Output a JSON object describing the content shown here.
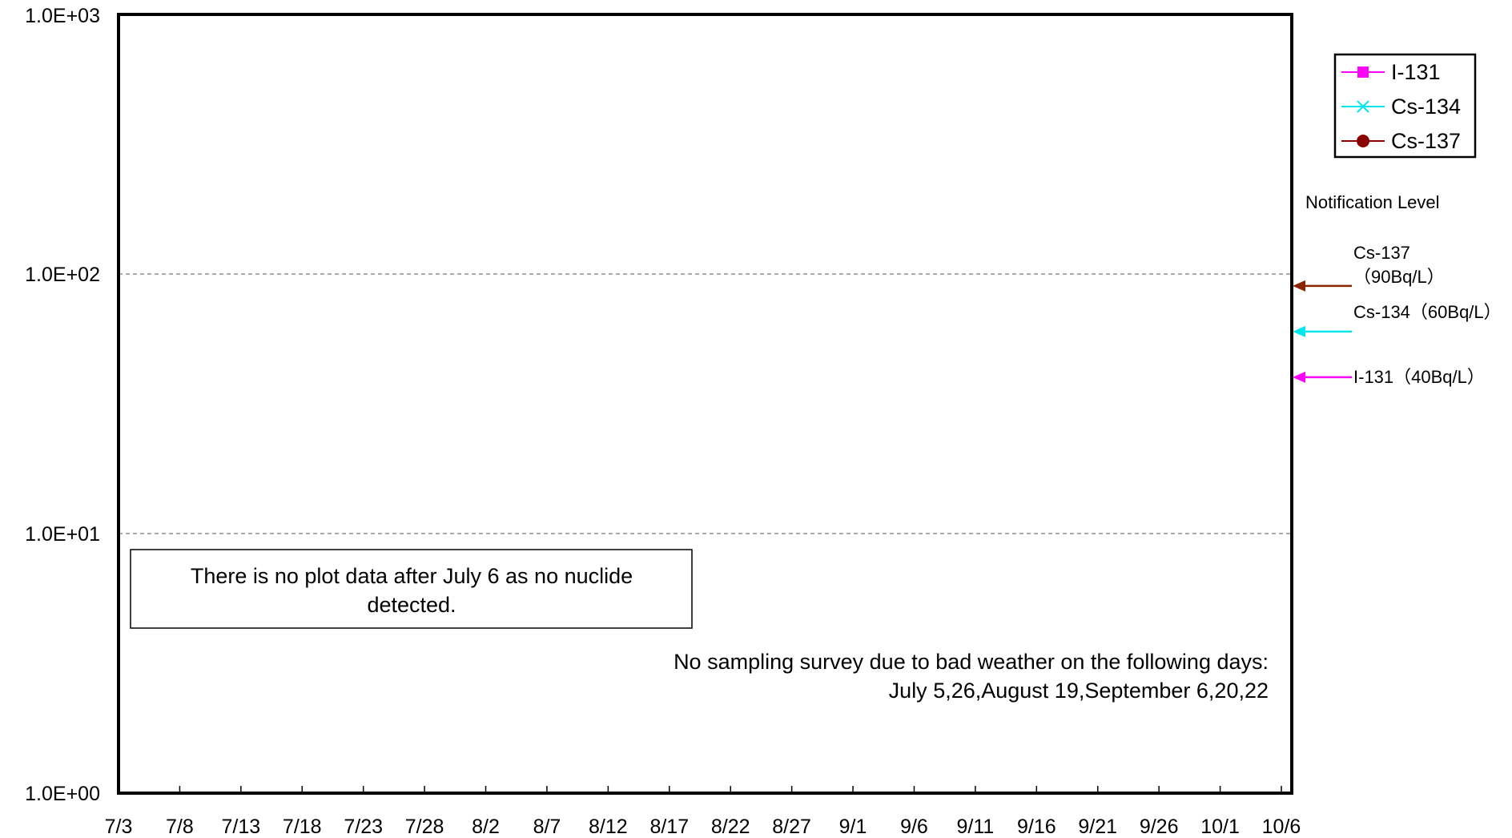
{
  "chart_data": {
    "type": "line",
    "title": "",
    "xlabel": "",
    "ylabel": "",
    "y_scale": "log",
    "ylim": [
      1,
      1000
    ],
    "y_ticks": [
      {
        "value": 1,
        "label": "1.0E+00"
      },
      {
        "value": 10,
        "label": "1.0E+01"
      },
      {
        "value": 100,
        "label": "1.0E+02"
      },
      {
        "value": 1000,
        "label": "1.0E+03"
      }
    ],
    "x_ticks": [
      "7/3",
      "7/8",
      "7/13",
      "7/18",
      "7/23",
      "7/28",
      "8/2",
      "8/7",
      "8/12",
      "8/17",
      "8/22",
      "8/27",
      "9/1",
      "9/6",
      "9/11",
      "9/16",
      "9/21",
      "9/26",
      "10/1",
      "10/6"
    ],
    "grid": "dashed horizontal at 1.0E+01 and 1.0E+02",
    "legend_position": "top-right",
    "series": [
      {
        "name": "I-131",
        "color": "#ff00ff",
        "marker": "square",
        "values": []
      },
      {
        "name": "Cs-134",
        "color": "#00e5ee",
        "marker": "x",
        "values": []
      },
      {
        "name": "Cs-137",
        "color": "#8b0000",
        "marker": "circle",
        "values": []
      }
    ],
    "notification_level": {
      "heading": "Notification Level",
      "levels": [
        {
          "nuclide": "Cs-137",
          "value": 90,
          "label_line1": "Cs-137",
          "label_line2": "（90Bq/L）",
          "color": "#8b2500"
        },
        {
          "nuclide": "Cs-134",
          "value": 60,
          "label_line1": "Cs-134（60Bq/L）",
          "label_line2": "",
          "color": "#00e5ee"
        },
        {
          "nuclide": "I-131",
          "value": 40,
          "label_line1": "I-131（40Bq/L）",
          "label_line2": "",
          "color": "#ff00ff"
        }
      ]
    },
    "annotations": {
      "no_data_line1": "There is no plot data after July 6 as no nuclide",
      "no_data_line2": "detected.",
      "no_sampling_line1": "No sampling survey due to bad weather on the following days:",
      "no_sampling_line2": "July 5,26,August 19,September 6,20,22"
    }
  }
}
